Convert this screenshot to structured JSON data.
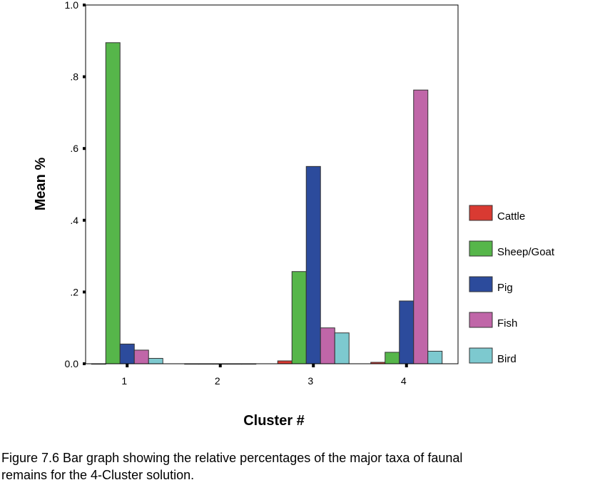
{
  "chart_data": {
    "type": "bar",
    "categories": [
      "1",
      "2",
      "3",
      "4"
    ],
    "series": [
      {
        "name": "Cattle",
        "color": "#d93a32",
        "values": [
          0.0,
          0.0,
          0.008,
          0.004
        ]
      },
      {
        "name": "Sheep/Goat",
        "color": "#56b64a",
        "values": [
          0.895,
          0.0,
          0.257,
          0.032
        ]
      },
      {
        "name": "Pig",
        "color": "#2c4b9c",
        "values": [
          0.055,
          0.0,
          0.55,
          0.175
        ]
      },
      {
        "name": "Fish",
        "color": "#c066a8",
        "values": [
          0.038,
          0.0,
          0.1,
          0.763
        ]
      },
      {
        "name": "Bird",
        "color": "#7dc9cf",
        "values": [
          0.015,
          0.0,
          0.086,
          0.035
        ]
      }
    ],
    "xlabel": "Cluster #",
    "ylabel": "Mean %",
    "ylim": [
      0.0,
      1.0
    ],
    "yticks": [
      0.0,
      0.2,
      0.4,
      0.6,
      0.8,
      1.0
    ],
    "ytick_labels": [
      "0.0",
      ".2",
      ".4",
      ".6",
      ".8",
      "1.0"
    ],
    "legend_position": "right",
    "grid": false
  },
  "caption": "Figure 7.6 Bar graph showing the relative percentages of the major taxa of faunal\nremains for the 4-Cluster solution."
}
